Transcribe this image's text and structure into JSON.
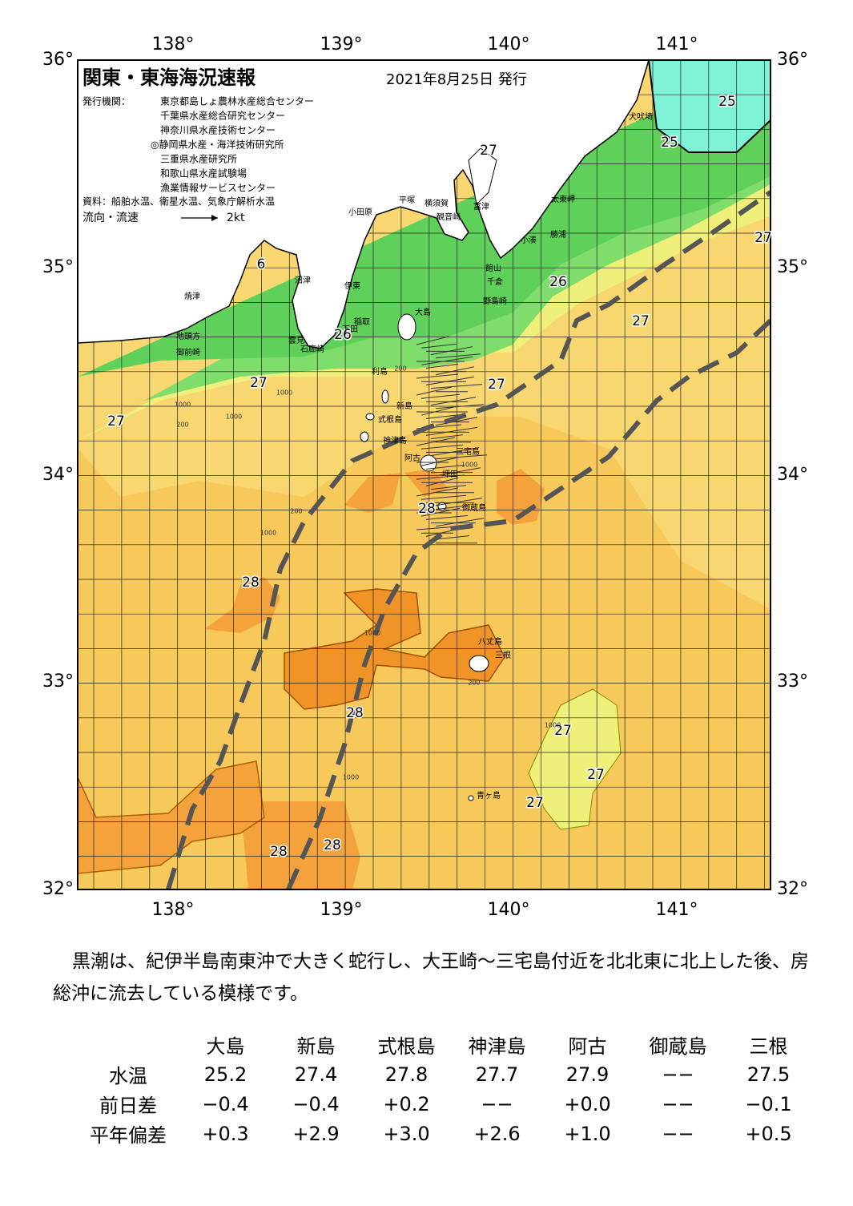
{
  "header": {
    "title": "関東・東海海況速報",
    "date": "2021年8月25日 発行",
    "agencies_label": "発行機関：",
    "agencies": [
      "東京都島しょ農林水産総合センター",
      "千葉県水産総合研究センター",
      "神奈川県水産技術センター",
      "◎静岡県水産・海洋技術研究所",
      "三重県水産研究所",
      "和歌山県水産試験場",
      "漁業情報サービスセンター"
    ],
    "source": "資料：船舶水温、衛星水温、気象庁解析水温",
    "legend_label": "流向・流速",
    "legend_speed": "2kt"
  },
  "map": {
    "lon_labels": [
      "138°",
      "139°",
      "140°",
      "141°"
    ],
    "lat_labels": [
      "36°",
      "35°",
      "34°",
      "33°",
      "32°"
    ],
    "temperature_labels": [
      "25",
      "25",
      "27",
      "6",
      "26",
      "27",
      "27",
      "26",
      "27",
      "27",
      "27",
      "28",
      "28",
      "28",
      "27",
      "27",
      "27",
      "28",
      "28"
    ],
    "place_names": [
      "犬吠埼",
      "太東岬",
      "勝浦",
      "小湊",
      "富津",
      "観音崎",
      "横須賀",
      "平塚",
      "小田原",
      "館山",
      "千倉",
      "野島崎",
      "沼津",
      "伊東",
      "大島",
      "稲取",
      "下田",
      "石廊崎",
      "雲見",
      "焼津",
      "地頭方",
      "御前崎",
      "利島",
      "新島",
      "式根島",
      "神津島",
      "三宅島",
      "阿古",
      "坪田",
      "御蔵島",
      "八丈島",
      "三根",
      "青ヶ島"
    ],
    "depth_labels": [
      "200",
      "1000",
      "1000",
      "200",
      "1000",
      "200",
      "1000",
      "1000",
      "1000",
      "200",
      "1000",
      "1000"
    ]
  },
  "summary": "黒潮は、紀伊半島南東沖で大きく蛇行し、大王崎～三宅島付近を北北東に北上した後、房総沖に流去している模様です。",
  "table": {
    "columns": [
      "大島",
      "新島",
      "式根島",
      "神津島",
      "阿古",
      "御蔵島",
      "三根"
    ],
    "rows": [
      {
        "label": "水温",
        "values": [
          "25.2",
          "27.4",
          "27.8",
          "27.7",
          "27.9",
          "−−",
          "27.5"
        ]
      },
      {
        "label": "前日差",
        "values": [
          "−0.4",
          "−0.4",
          "+0.2",
          "−−",
          "+0.0",
          "−−",
          "−0.1"
        ]
      },
      {
        "label": "平年偏差",
        "values": [
          "+0.3",
          "+2.9",
          "+3.0",
          "+2.6",
          "+1.0",
          "−−",
          "+0.5"
        ]
      }
    ]
  }
}
